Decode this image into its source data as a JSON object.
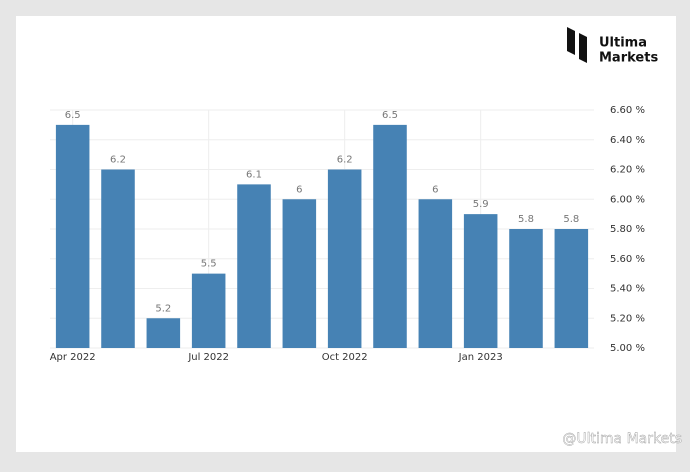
{
  "chart_data": {
    "type": "bar",
    "categories": [
      "Apr 2022",
      null,
      null,
      "Jul 2022",
      null,
      null,
      "Oct 2022",
      null,
      null,
      "Jan 2023",
      null,
      null
    ],
    "values": [
      6.5,
      6.2,
      5.2,
      5.5,
      6.1,
      6,
      6.2,
      6.5,
      6,
      5.9,
      5.8,
      5.8
    ],
    "color": "#4682b4",
    "ylim": [
      5,
      6.6
    ],
    "yticks": [
      {
        "value": 5,
        "label": "5.00 %"
      },
      {
        "value": 5.2,
        "label": "5.20 %"
      },
      {
        "value": 5.4,
        "label": "5.40 %"
      },
      {
        "value": 5.6,
        "label": "5.60 %"
      },
      {
        "value": 5.8,
        "label": "5.80 %"
      },
      {
        "value": 6,
        "label": "6.00 %"
      },
      {
        "value": 6.2,
        "label": "6.20 %"
      },
      {
        "value": 6.4,
        "label": "6.40 %"
      },
      {
        "value": 6.6,
        "label": "6.60 %"
      }
    ],
    "grid": true,
    "y_axis_side": "right"
  },
  "logo": {
    "line1": "Ultima",
    "line2": "Markets"
  },
  "watermark": "@Ultima Markets"
}
